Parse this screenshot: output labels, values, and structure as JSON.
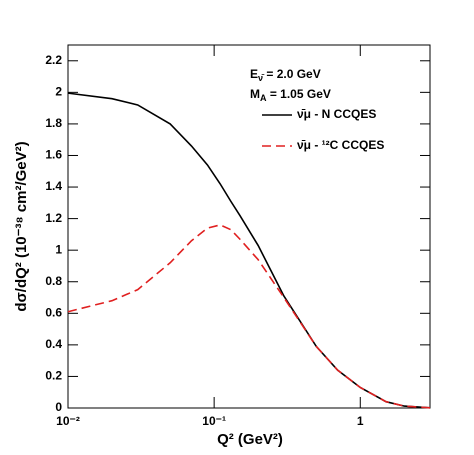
{
  "chart_data": {
    "type": "line",
    "x_label": "Q² (GeV²)",
    "y_label": "dσ/dQ² (10⁻³⁸ cm²/GeV²)",
    "annotations": [
      [
        "E",
        "ν̄",
        " = 2.0 GeV"
      ],
      [
        "M",
        "A",
        " = 1.05 GeV"
      ]
    ],
    "x": [
      0.01,
      0.02,
      0.03,
      0.05,
      0.07,
      0.09,
      0.11,
      0.13,
      0.15,
      0.2,
      0.3,
      0.5,
      0.7,
      1,
      1.5,
      2,
      3
    ],
    "series": [
      {
        "name": "ν̄μ - N CCQES",
        "color": "#000000",
        "dash": false,
        "values": [
          1.995,
          1.96,
          1.92,
          1.8,
          1.66,
          1.54,
          1.42,
          1.31,
          1.22,
          1.03,
          0.71,
          0.39,
          0.24,
          0.13,
          0.04,
          0.012,
          0.001
        ]
      },
      {
        "name": "ν̄μ - ¹²C CCQES",
        "color": "#e02020",
        "dash": true,
        "values": [
          0.61,
          0.68,
          0.75,
          0.92,
          1.06,
          1.14,
          1.16,
          1.13,
          1.07,
          0.94,
          0.7,
          0.39,
          0.24,
          0.13,
          0.04,
          0.012,
          0.001
        ]
      }
    ],
    "xlog": true,
    "xlim": [
      0.01,
      3
    ],
    "xticks": [
      {
        "value": 0.01,
        "label": "10⁻²"
      },
      {
        "value": 0.1,
        "label": "10⁻¹"
      },
      1
    ],
    "ylim": [
      0,
      2.3
    ],
    "yticks": [
      0,
      0.2,
      0.4,
      0.6,
      0.8,
      1,
      1.2,
      1.4,
      1.6,
      1.8,
      2,
      2.2
    ]
  }
}
